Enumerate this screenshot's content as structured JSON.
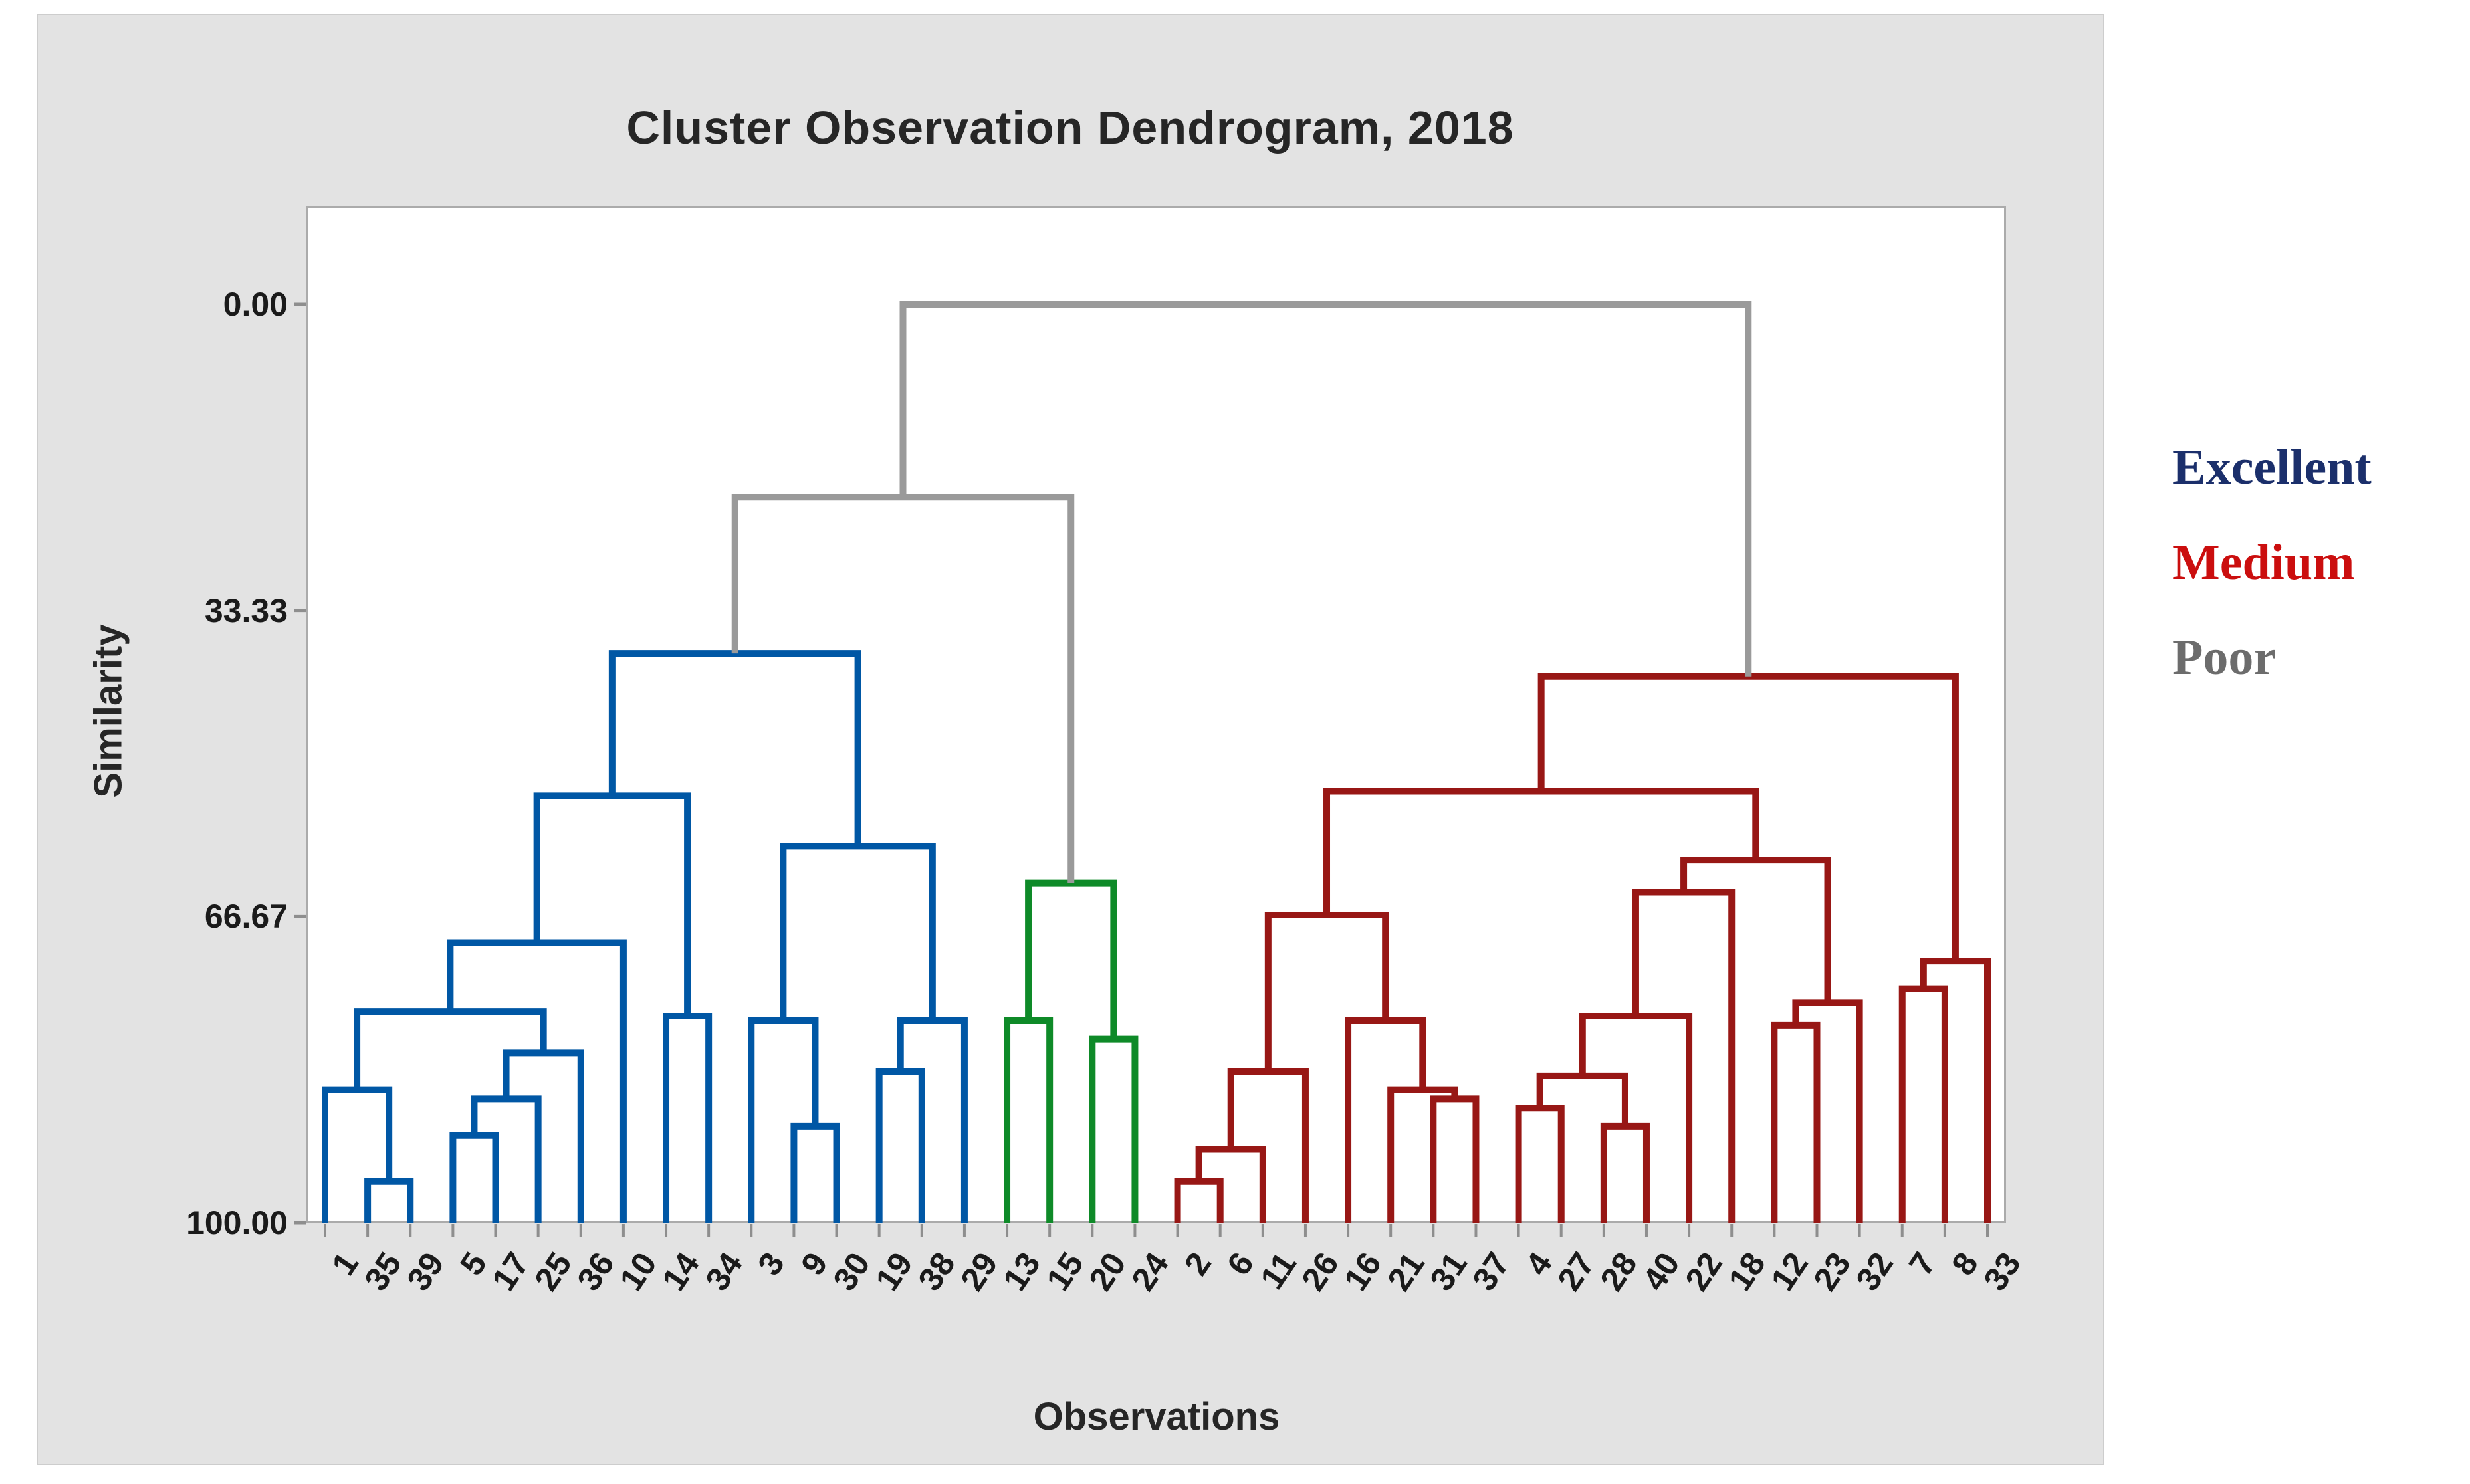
{
  "title": "Cluster Observation Dendrogram, 2018",
  "axes": {
    "y_label": "Similarity",
    "x_label": "Observations",
    "y_ticks": [
      "0.00",
      "33.33",
      "66.67",
      "100.00"
    ],
    "y_tick_values": [
      0,
      33.33,
      66.67,
      100
    ]
  },
  "legend": [
    {
      "label": "Excellent",
      "color": "#1B2F6B"
    },
    {
      "label": "Medium",
      "color": "#CB0E0E"
    },
    {
      "label": "Poor",
      "color": "#6C6C6C"
    }
  ],
  "chart_data": {
    "type": "dendrogram",
    "orientation": "vertical",
    "title": "Cluster Observation Dendrogram, 2018",
    "xlabel": "Observations",
    "ylabel": "Similarity",
    "ylim": [
      0,
      100
    ],
    "y_axis_inverted": true,
    "leaves": [
      "1",
      "35",
      "39",
      "5",
      "17",
      "25",
      "36",
      "10",
      "14",
      "34",
      "3",
      "9",
      "30",
      "19",
      "38",
      "29",
      "13",
      "15",
      "20",
      "24",
      "2",
      "6",
      "11",
      "26",
      "16",
      "21",
      "31",
      "37",
      "4",
      "27",
      "28",
      "40",
      "22",
      "18",
      "12",
      "23",
      "32",
      "7",
      "8",
      "33"
    ],
    "line_colors": {
      "blue": "#0057A5",
      "green": "#0E8A28",
      "red": "#981715",
      "gray": "#9A9A9A"
    },
    "merges": [
      {
        "id": "b1",
        "left": "@35",
        "right": "@39",
        "similarity": 95.5,
        "group": "blue"
      },
      {
        "id": "b2",
        "left": "@1",
        "right": "b1",
        "similarity": 85.5,
        "group": "blue"
      },
      {
        "id": "b3",
        "left": "@5",
        "right": "@17",
        "similarity": 90.5,
        "group": "blue"
      },
      {
        "id": "b4",
        "left": "b3",
        "right": "@25",
        "similarity": 86.5,
        "group": "blue"
      },
      {
        "id": "b5",
        "left": "b4",
        "right": "@36",
        "similarity": 81.5,
        "group": "blue"
      },
      {
        "id": "b6",
        "left": "b2",
        "right": "b5",
        "similarity": 77.0,
        "group": "blue"
      },
      {
        "id": "b7",
        "left": "b6",
        "right": "@10",
        "similarity": 69.5,
        "group": "blue"
      },
      {
        "id": "b8",
        "left": "@14",
        "right": "@34",
        "similarity": 77.5,
        "group": "blue"
      },
      {
        "id": "b9",
        "left": "b7",
        "right": "b8",
        "similarity": 53.5,
        "group": "blue"
      },
      {
        "id": "b10",
        "left": "@9",
        "right": "@30",
        "similarity": 89.5,
        "group": "blue"
      },
      {
        "id": "b11",
        "left": "@3",
        "right": "b10",
        "similarity": 78.0,
        "group": "blue"
      },
      {
        "id": "b12",
        "left": "@19",
        "right": "@38",
        "similarity": 83.5,
        "group": "blue"
      },
      {
        "id": "b13",
        "left": "b12",
        "right": "@29",
        "similarity": 78.0,
        "group": "blue"
      },
      {
        "id": "b14",
        "left": "b11",
        "right": "b13",
        "similarity": 59.0,
        "group": "blue"
      },
      {
        "id": "b15",
        "left": "b9",
        "right": "b14",
        "similarity": 38.0,
        "group": "blue"
      },
      {
        "id": "g1",
        "left": "@13",
        "right": "@15",
        "similarity": 78.0,
        "group": "green"
      },
      {
        "id": "g2",
        "left": "@20",
        "right": "@24",
        "similarity": 80.0,
        "group": "green"
      },
      {
        "id": "g3",
        "left": "g1",
        "right": "g2",
        "similarity": 63.0,
        "group": "green"
      },
      {
        "id": "r1",
        "left": "@2",
        "right": "@6",
        "similarity": 95.5,
        "group": "red"
      },
      {
        "id": "r2",
        "left": "r1",
        "right": "@11",
        "similarity": 92.0,
        "group": "red"
      },
      {
        "id": "r3",
        "left": "r2",
        "right": "@26",
        "similarity": 83.5,
        "group": "red"
      },
      {
        "id": "r4",
        "left": "@31",
        "right": "@37",
        "similarity": 86.5,
        "group": "red"
      },
      {
        "id": "r5",
        "left": "@21",
        "right": "r4",
        "similarity": 85.5,
        "group": "red"
      },
      {
        "id": "r6",
        "left": "@16",
        "right": "r5",
        "similarity": 78.0,
        "group": "red"
      },
      {
        "id": "r7",
        "left": "r3",
        "right": "r6",
        "similarity": 66.5,
        "group": "red"
      },
      {
        "id": "r8",
        "left": "@4",
        "right": "@27",
        "similarity": 87.5,
        "group": "red"
      },
      {
        "id": "r9",
        "left": "@28",
        "right": "@40",
        "similarity": 89.5,
        "group": "red"
      },
      {
        "id": "r10",
        "left": "r8",
        "right": "r9",
        "similarity": 84.0,
        "group": "red"
      },
      {
        "id": "r11",
        "left": "r10",
        "right": "@22",
        "similarity": 77.5,
        "group": "red"
      },
      {
        "id": "r12",
        "left": "r11",
        "right": "@18",
        "similarity": 64.0,
        "group": "red"
      },
      {
        "id": "r13",
        "left": "@12",
        "right": "@23",
        "similarity": 78.5,
        "group": "red"
      },
      {
        "id": "r14",
        "left": "r13",
        "right": "@32",
        "similarity": 76.0,
        "group": "red"
      },
      {
        "id": "r15",
        "left": "r12",
        "right": "r14",
        "similarity": 60.5,
        "group": "red"
      },
      {
        "id": "r16",
        "left": "r7",
        "right": "r15",
        "similarity": 53.0,
        "group": "red"
      },
      {
        "id": "r17",
        "left": "@7",
        "right": "@8",
        "similarity": 74.5,
        "group": "red"
      },
      {
        "id": "r18",
        "left": "r17",
        "right": "@33",
        "similarity": 71.5,
        "group": "red"
      },
      {
        "id": "r19",
        "left": "r16",
        "right": "r18",
        "similarity": 40.5,
        "group": "red"
      },
      {
        "id": "t1",
        "left": "b15",
        "right": "g3",
        "similarity": 21.0,
        "group": "gray"
      },
      {
        "id": "t2",
        "left": "t1",
        "right": "r19",
        "similarity": 0.0,
        "group": "gray"
      }
    ]
  }
}
